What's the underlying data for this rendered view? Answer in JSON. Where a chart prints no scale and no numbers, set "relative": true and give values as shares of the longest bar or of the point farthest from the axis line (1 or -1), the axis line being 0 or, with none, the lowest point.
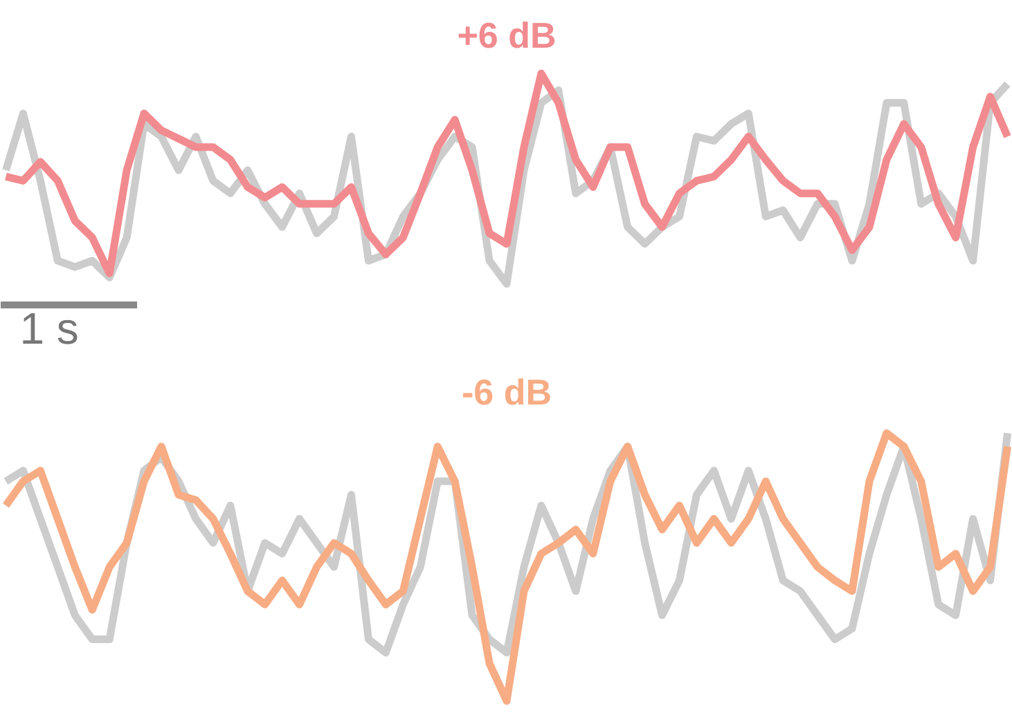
{
  "chart_data": [
    {
      "type": "line",
      "title": "+6 dB",
      "relative": true,
      "annotations": [
        "1 s"
      ],
      "categories": [
        null,
        null,
        null,
        null,
        null,
        null,
        null,
        null,
        null,
        null,
        null,
        null,
        null,
        null,
        null,
        null,
        null,
        null,
        null,
        null,
        null,
        null,
        null,
        null,
        null,
        null,
        null,
        null,
        null,
        null,
        null,
        null,
        null,
        null,
        null,
        null,
        null,
        null,
        null,
        null,
        null,
        null,
        null,
        null,
        null,
        null,
        null,
        null,
        null,
        null,
        null,
        null,
        null,
        null,
        null,
        null,
        null,
        null,
        null
      ],
      "series": [
        {
          "color": "#cccccc",
          "values": [
            0.54,
            0.81,
            0.49,
            0.11,
            0.08,
            0.11,
            0.03,
            0.22,
            0.76,
            0.7,
            0.54,
            0.7,
            0.49,
            0.43,
            0.54,
            0.38,
            0.27,
            0.43,
            0.24,
            0.32,
            0.7,
            0.11,
            0.14,
            0.32,
            0.43,
            0.59,
            0.7,
            0.65,
            0.11,
            0,
            0.54,
            0.86,
            0.92,
            0.43,
            0.49,
            0.65,
            0.27,
            0.19,
            0.27,
            0.32,
            0.7,
            0.68,
            0.76,
            0.81,
            0.32,
            0.35,
            0.22,
            0.38,
            0.38,
            0.11,
            0.38,
            0.86,
            0.86,
            0.38,
            0.43,
            0.32,
            0.11,
            0.86,
            0.95
          ]
        },
        {
          "color": "#f28b8f",
          "values": [
            0.51,
            0.49,
            0.58,
            0.49,
            0.3,
            0.22,
            0.05,
            0.54,
            0.81,
            0.73,
            0.69,
            0.65,
            0.65,
            0.59,
            0.46,
            0.41,
            0.46,
            0.38,
            0.38,
            0.38,
            0.46,
            0.24,
            0.14,
            0.22,
            0.43,
            0.65,
            0.78,
            0.54,
            0.24,
            0.19,
            0.65,
            1.0,
            0.86,
            0.59,
            0.46,
            0.65,
            0.65,
            0.38,
            0.27,
            0.43,
            0.49,
            0.51,
            0.59,
            0.7,
            0.59,
            0.49,
            0.43,
            0.43,
            0.32,
            0.16,
            0.27,
            0.59,
            0.76,
            0.65,
            0.38,
            0.22,
            0.65,
            0.89,
            0.7
          ]
        }
      ]
    },
    {
      "type": "line",
      "title": "-6 dB",
      "relative": true,
      "categories": [
        null,
        null,
        null,
        null,
        null,
        null,
        null,
        null,
        null,
        null,
        null,
        null,
        null,
        null,
        null,
        null,
        null,
        null,
        null,
        null,
        null,
        null,
        null,
        null,
        null,
        null,
        null,
        null,
        null,
        null,
        null,
        null,
        null,
        null,
        null,
        null,
        null,
        null,
        null,
        null,
        null,
        null,
        null,
        null,
        null,
        null,
        null,
        null,
        null,
        null,
        null,
        null,
        null,
        null,
        null,
        null,
        null,
        null,
        null
      ],
      "series": [
        {
          "color": "#cccccc",
          "values": [
            0.82,
            0.86,
            0.68,
            0.5,
            0.32,
            0.23,
            0.23,
            0.59,
            0.86,
            0.91,
            0.82,
            0.68,
            0.59,
            0.73,
            0.41,
            0.59,
            0.55,
            0.68,
            0.59,
            0.5,
            0.77,
            0.23,
            0.18,
            0.36,
            0.5,
            0.82,
            0.82,
            0.32,
            0.23,
            0.18,
            0.5,
            0.73,
            0.59,
            0.41,
            0.68,
            0.86,
            0.95,
            0.59,
            0.32,
            0.45,
            0.77,
            0.86,
            0.68,
            0.86,
            0.68,
            0.45,
            0.41,
            0.32,
            0.23,
            0.27,
            0.55,
            0.77,
            0.95,
            0.68,
            0.36,
            0.32,
            0.68,
            0.45,
            1.0
          ]
        },
        {
          "color": "#f7ac84",
          "values": [
            0.73,
            0.82,
            0.86,
            0.68,
            0.5,
            0.34,
            0.5,
            0.59,
            0.82,
            0.95,
            0.77,
            0.75,
            0.68,
            0.55,
            0.41,
            0.36,
            0.45,
            0.36,
            0.5,
            0.59,
            0.55,
            0.45,
            0.36,
            0.41,
            0.68,
            0.95,
            0.82,
            0.5,
            0.14,
            0,
            0.41,
            0.55,
            0.59,
            0.64,
            0.55,
            0.82,
            0.95,
            0.77,
            0.64,
            0.73,
            0.59,
            0.68,
            0.59,
            0.68,
            0.82,
            0.68,
            0.59,
            0.5,
            0.45,
            0.41,
            0.82,
            1.0,
            0.95,
            0.82,
            0.5,
            0.55,
            0.41,
            0.5,
            0.95
          ]
        }
      ]
    }
  ]
}
